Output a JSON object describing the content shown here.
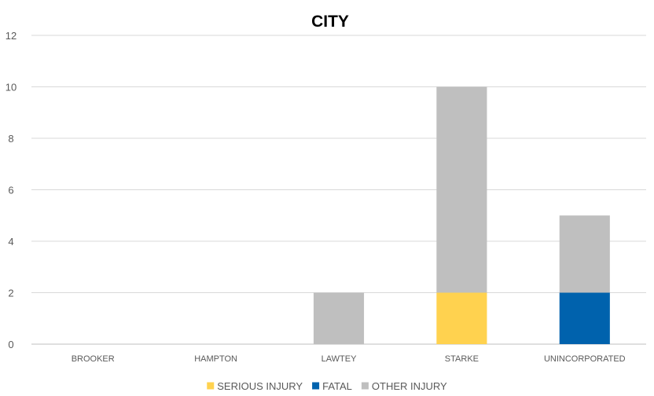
{
  "chart_data": {
    "type": "bar",
    "stacked": true,
    "title": "CITY",
    "xlabel": "",
    "ylabel": "",
    "categories": [
      "BROOKER",
      "HAMPTON",
      "LAWTEY",
      "STARKE",
      "UNINCORPORATED"
    ],
    "series": [
      {
        "name": "SERIOUS INJURY",
        "color": "#FFD24F",
        "values": [
          0,
          0,
          0,
          2,
          0
        ]
      },
      {
        "name": "FATAL",
        "color": "#0062AD",
        "values": [
          0,
          0,
          0,
          0,
          2
        ]
      },
      {
        "name": "OTHER INJURY",
        "color": "#BFBFBF",
        "values": [
          0,
          0,
          2,
          8,
          3
        ]
      }
    ],
    "ylim": [
      0,
      12
    ],
    "yticks": [
      0,
      2,
      4,
      6,
      8,
      10,
      12
    ],
    "grid": true,
    "legend_position": "bottom"
  }
}
